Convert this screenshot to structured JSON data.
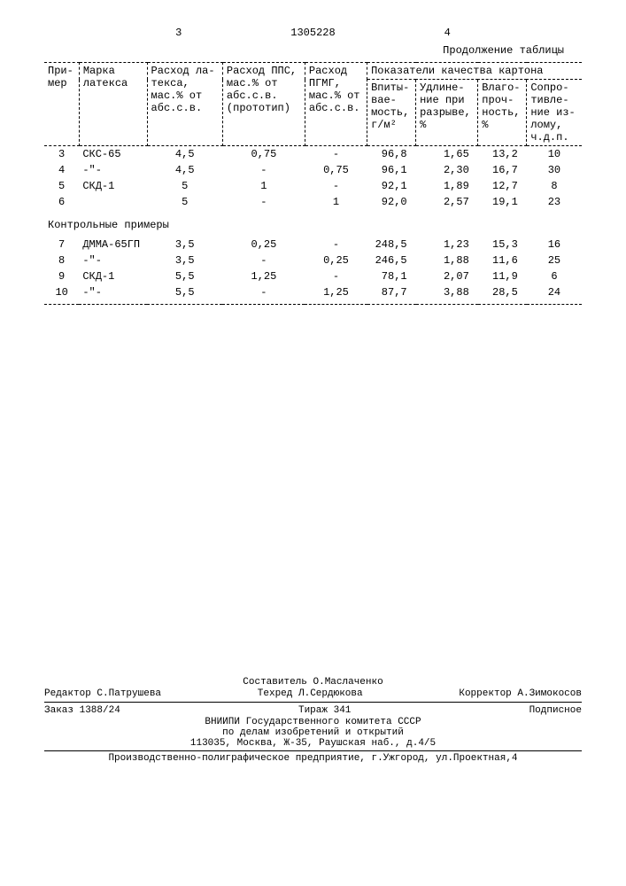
{
  "page_left": "3",
  "page_right": "4",
  "patent_number": "1305228",
  "continuation": "Продолжение таблицы",
  "headers": {
    "c1": "При-\nмер",
    "c2": "Марка\nлатекса",
    "c3": "Расход ла-\nтекса,\nмас.% от\nабс.с.в.",
    "c4": "Расход ППС,\nмас.% от\nабс.с.в.\n(прототип)",
    "c5": "Расход\nПГМГ,\nмас.% от\nабс.с.в.",
    "group": "Показатели качества картона",
    "c6": "Впиты-\nвае-\nмость,\nг/м²",
    "c7": "Удлине-\nние при\nразрыве,\n%",
    "c8": "Влаго-\nпроч-\nность,\n%",
    "c9": "Сопро-\nтивле-\nние из-\nлому,\nч.д.п."
  },
  "section_label": "Контрольные примеры",
  "rows": [
    {
      "n": "3",
      "brand": "СКС-65",
      "latex": "4,5",
      "pps": "0,75",
      "pgmg": "-",
      "abs": "96,8",
      "elong": "1,65",
      "moist": "13,2",
      "fold": "10"
    },
    {
      "n": "4",
      "brand": "-\"-",
      "latex": "4,5",
      "pps": "-",
      "pgmg": "0,75",
      "abs": "96,1",
      "elong": "2,30",
      "moist": "16,7",
      "fold": "30"
    },
    {
      "n": "5",
      "brand": "СКД-1",
      "latex": "5",
      "pps": "1",
      "pgmg": "-",
      "abs": "92,1",
      "elong": "1,89",
      "moist": "12,7",
      "fold": "8"
    },
    {
      "n": "6",
      "brand": "",
      "latex": "5",
      "pps": "-",
      "pgmg": "1",
      "abs": "92,0",
      "elong": "2,57",
      "moist": "19,1",
      "fold": "23"
    }
  ],
  "control_rows": [
    {
      "n": "7",
      "brand": "ДММА-65ГП",
      "latex": "3,5",
      "pps": "0,25",
      "pgmg": "-",
      "abs": "248,5",
      "elong": "1,23",
      "moist": "15,3",
      "fold": "16"
    },
    {
      "n": "8",
      "brand": "-\"-",
      "latex": "3,5",
      "pps": "-",
      "pgmg": "0,25",
      "abs": "246,5",
      "elong": "1,88",
      "moist": "11,6",
      "fold": "25"
    },
    {
      "n": "9",
      "brand": "СКД-1",
      "latex": "5,5",
      "pps": "1,25",
      "pgmg": "-",
      "abs": "78,1",
      "elong": "2,07",
      "moist": "11,9",
      "fold": "6"
    },
    {
      "n": "10",
      "brand": "-\"-",
      "latex": "5,5",
      "pps": "-",
      "pgmg": "1,25",
      "abs": "87,7",
      "elong": "3,88",
      "moist": "28,5",
      "fold": "24"
    }
  ],
  "footer": {
    "compiler": "Составитель О.Маслаченко",
    "editor": "Редактор С.Патрушева",
    "tech": "Техред Л.Сердюкова",
    "corrector": "Корректор А.Зимокосов",
    "order": "Заказ 1388/24",
    "circulation": "Тираж 341",
    "subscription": "Подписное",
    "org1": "ВНИИПИ Государственного комитета СССР",
    "org2": "по делам изобретений и открытий",
    "address": "113035, Москва, Ж-35, Раушская наб., д.4/5",
    "printer": "Производственно-полиграфическое предприятие, г.Ужгород, ул.Проектная,4"
  }
}
